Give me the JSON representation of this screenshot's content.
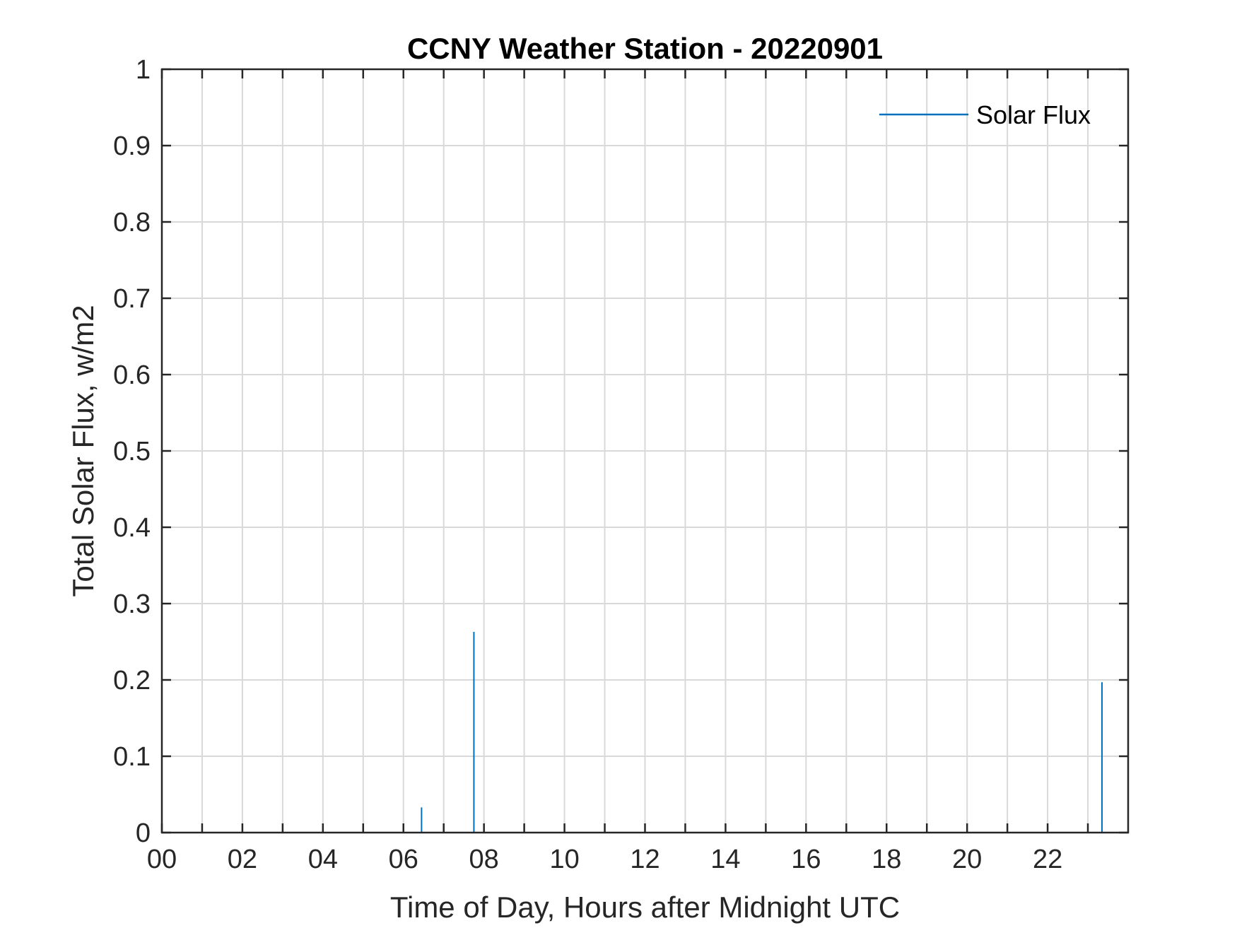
{
  "chart_data": {
    "type": "line",
    "title": "CCNY Weather Station - 20220901",
    "xlabel": "Time of Day, Hours after Midnight UTC",
    "ylabel": "Total Solar Flux, w/m2",
    "xlim": [
      0,
      24
    ],
    "ylim": [
      0,
      1
    ],
    "x_ticks": [
      0,
      2,
      4,
      6,
      8,
      10,
      12,
      14,
      16,
      18,
      20,
      22
    ],
    "x_tick_labels": [
      "00",
      "02",
      "04",
      "06",
      "08",
      "10",
      "12",
      "14",
      "16",
      "18",
      "20",
      "22"
    ],
    "x_minor_ticks": [
      1,
      3,
      5,
      7,
      9,
      11,
      13,
      15,
      17,
      19,
      21,
      23
    ],
    "y_ticks": [
      0,
      0.1,
      0.2,
      0.3,
      0.4,
      0.5,
      0.6,
      0.7,
      0.8,
      0.9,
      1
    ],
    "y_tick_labels": [
      "0",
      "0.1",
      "0.2",
      "0.3",
      "0.4",
      "0.5",
      "0.6",
      "0.7",
      "0.8",
      "0.9",
      "1"
    ],
    "grid": true,
    "legend_position": "top-right",
    "series": [
      {
        "name": "Solar Flux",
        "color": "#0072BD",
        "points": [
          {
            "x": 6.45,
            "y": 0.033
          },
          {
            "x": 7.75,
            "y": 0.263
          },
          {
            "x": 23.35,
            "y": 0.197
          }
        ]
      }
    ]
  }
}
